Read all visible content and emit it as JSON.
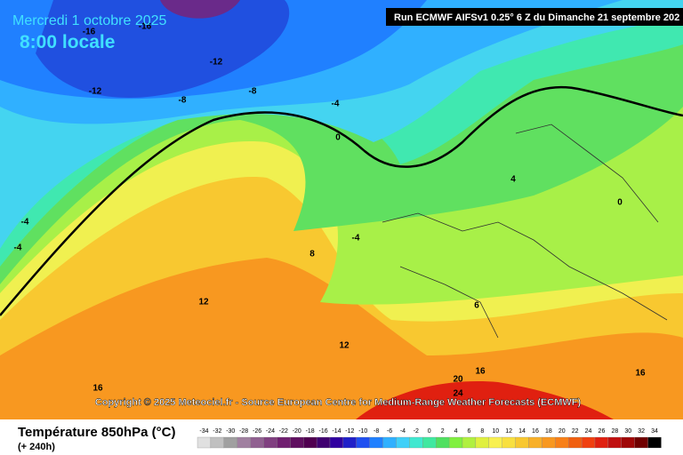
{
  "header": {
    "date": "Mercredi 1 octobre 2025",
    "time": "8:00 locale",
    "run": "Run ECMWF AIFSv1 0.25° 6 Z du Dimanche 21 septembre 202"
  },
  "map": {
    "labels": [
      "-16",
      "-16",
      "-12",
      "-12",
      "-8",
      "-8",
      "-4",
      "0",
      "4",
      "0",
      "-4",
      "-4",
      "-4",
      "8",
      "12",
      "6",
      "12",
      "16",
      "16",
      "20",
      "24",
      "16"
    ],
    "copyright": "Copyright © 2025 Meteociel.fr - Source European Centre for Medium-Range Weather Forecasts (ECMWF)"
  },
  "footer": {
    "title": "Température 850hPa (°C)",
    "lead": "(+ 240h)"
  },
  "legend": {
    "ticks": [
      -34,
      -32,
      -30,
      -28,
      -26,
      -24,
      -22,
      -20,
      -18,
      -16,
      -14,
      -12,
      -10,
      -8,
      -6,
      -4,
      -2,
      0,
      2,
      4,
      6,
      8,
      10,
      12,
      14,
      16,
      18,
      20,
      22,
      24,
      26,
      28,
      30,
      32,
      34
    ],
    "colors": [
      "#e0e0e0",
      "#c0c0c0",
      "#a0a0a0",
      "#a080a0",
      "#906090",
      "#804080",
      "#702070",
      "#601060",
      "#500050",
      "#400070",
      "#3000a0",
      "#2020c8",
      "#2050f0",
      "#2080ff",
      "#30b0ff",
      "#40d0f8",
      "#40e8d0",
      "#40e8a0",
      "#50e060",
      "#80f040",
      "#b0f040",
      "#e0f040",
      "#f8f050",
      "#f8e040",
      "#f8c830",
      "#f8b028",
      "#f89820",
      "#f88018",
      "#f06010",
      "#f04010",
      "#e02010",
      "#c01010",
      "#a00808",
      "#700000",
      "#000000"
    ]
  }
}
